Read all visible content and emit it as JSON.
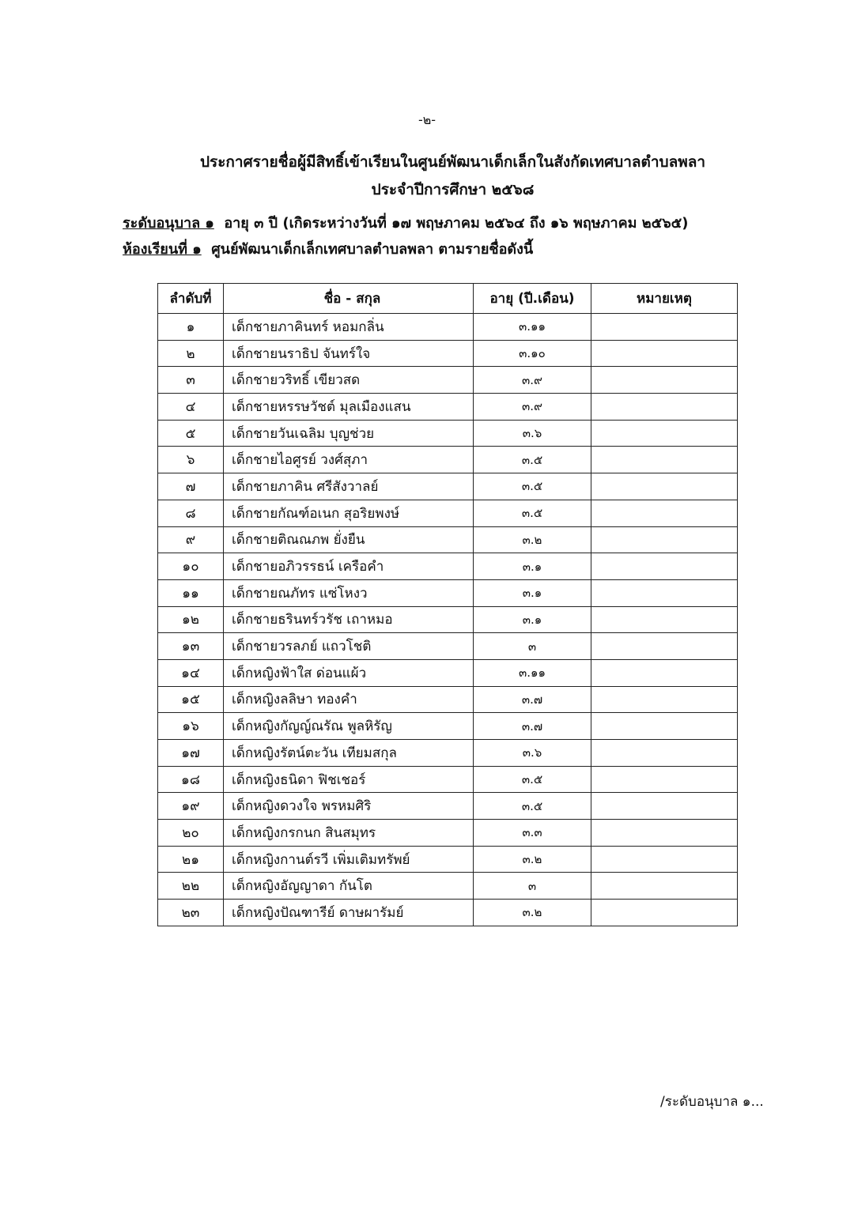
{
  "page_number": "-๒-",
  "title_line1": "ประกาศรายชื่อผู้มีสิทธิ์เข้าเรียนในศูนย์พัฒนาเด็กเล็กในสังกัดเทศบาลตำบลพลา",
  "title_line2": "ประจำปีการศึกษา ๒๕๖๘",
  "level_label": "ระดับอนุบาล ๑",
  "level_text": "อายุ ๓ ปี (เกิดระหว่างวันที่ ๑๗ พฤษภาคม ๒๕๖๔ ถึง ๑๖ พฤษภาคม ๒๕๖๕)",
  "room_label": "ห้องเรียนที่ ๑",
  "room_text": "ศูนย์พัฒนาเด็กเล็กเทศบาลตำบลพลา ตามรายชื่อดังนี้",
  "table": {
    "headers": [
      "ลำดับที่",
      "ชื่อ - สกุล",
      "อายุ (ปี.เดือน)",
      "หมายเหตุ"
    ],
    "rows": [
      [
        "๑",
        "เด็กชายภาคินทร์  หอมกลิ่น",
        "๓.๑๑",
        ""
      ],
      [
        "๒",
        "เด็กชายนราธิป  จันทร์ใจ",
        "๓.๑๐",
        ""
      ],
      [
        "๓",
        "เด็กชายวริทธิ์  เขียวสด",
        "๓.๙",
        ""
      ],
      [
        "๔",
        "เด็กชายหรรษวัชต์  มุลเมืองแสน",
        "๓.๙",
        ""
      ],
      [
        "๕",
        "เด็กชายวันเฉลิม  บุญช่วย",
        "๓.๖",
        ""
      ],
      [
        "๖",
        "เด็กชายไอศูรย์  วงศ์สุภา",
        "๓.๕",
        ""
      ],
      [
        "๗",
        "เด็กชายภาคิน  ศรีสังวาลย์",
        "๓.๕",
        ""
      ],
      [
        "๘",
        "เด็กชายกัณฑ์อเนก  สุอริยพงษ์",
        "๓.๕",
        ""
      ],
      [
        "๙",
        "เด็กชายติณณภพ  ยั่งยืน",
        "๓.๒",
        ""
      ],
      [
        "๑๐",
        "เด็กชายอภิวรรธน์  เครือคำ",
        "๓.๑",
        ""
      ],
      [
        "๑๑",
        "เด็กชายณภัทร  แซ่โหงว",
        "๓.๑",
        ""
      ],
      [
        "๑๒",
        "เด็กชายธรินทร์วรัช  เถาหมอ",
        "๓.๑",
        ""
      ],
      [
        "๑๓",
        "เด็กชายวรลภย์  แถวโชติ",
        "๓",
        ""
      ],
      [
        "๑๔",
        "เด็กหญิงฟ้าใส  ด่อนแผ้ว",
        "๓.๑๑",
        ""
      ],
      [
        "๑๕",
        "เด็กหญิงลลิษา  ทองคำ",
        "๓.๗",
        ""
      ],
      [
        "๑๖",
        "เด็กหญิงกัญญ์ณรัณ  พูลหิรัญ",
        "๓.๗",
        ""
      ],
      [
        "๑๗",
        "เด็กหญิงรัตน์ตะวัน  เทียมสกุล",
        "๓.๖",
        ""
      ],
      [
        "๑๘",
        "เด็กหญิงธนิดา  ฟิชเชอร์",
        "๓.๕",
        ""
      ],
      [
        "๑๙",
        "เด็กหญิงดวงใจ  พรหมศิริ",
        "๓.๕",
        ""
      ],
      [
        "๒๐",
        "เด็กหญิงกรกนก  สินสมุทร",
        "๓.๓",
        ""
      ],
      [
        "๒๑",
        "เด็กหญิงกานต์รวี  เพิ่มเติมทรัพย์",
        "๓.๒",
        ""
      ],
      [
        "๒๒",
        "เด็กหญิงอัญญาดา  กันโต",
        "๓",
        ""
      ],
      [
        "๒๓",
        "เด็กหญิงปัณฑารีย์  ดาษผารัมย์",
        "๓.๒",
        ""
      ]
    ]
  },
  "footer_continuation": "/ระดับอนุบาล ๑..."
}
